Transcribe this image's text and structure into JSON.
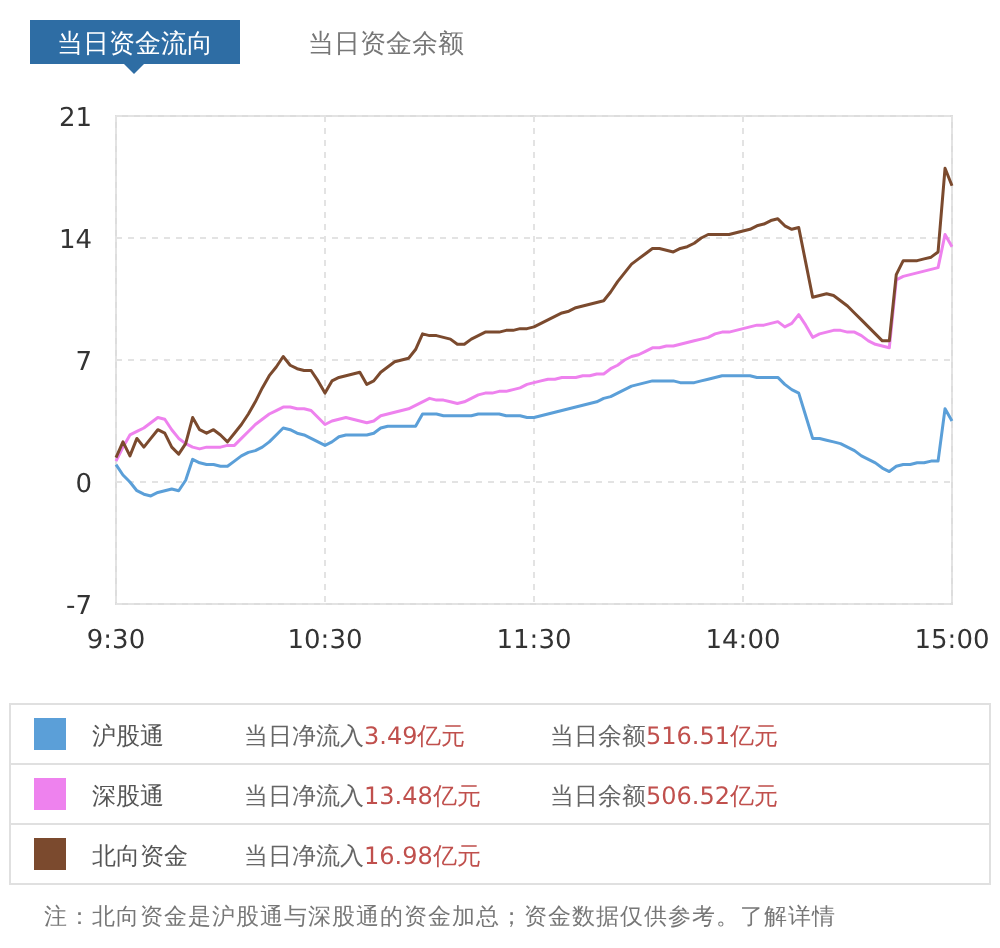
{
  "chart_data": {
    "type": "line",
    "title": "当日资金流向",
    "subtitle": "当日资金余额",
    "categories": [
      "9:30",
      null,
      null,
      null,
      null,
      null,
      null,
      null,
      null,
      null,
      null,
      null,
      null,
      null,
      null,
      null,
      null,
      null,
      null,
      null,
      null,
      null,
      null,
      null,
      null,
      null,
      null,
      null,
      null,
      null,
      "10:30",
      null,
      null,
      null,
      null,
      null,
      null,
      null,
      null,
      null,
      null,
      null,
      null,
      null,
      null,
      null,
      null,
      null,
      null,
      null,
      null,
      null,
      null,
      null,
      null,
      null,
      null,
      null,
      null,
      null,
      "11:30",
      null,
      null,
      null,
      null,
      null,
      null,
      null,
      null,
      null,
      null,
      null,
      null,
      null,
      null,
      null,
      null,
      null,
      null,
      null,
      null,
      null,
      null,
      null,
      null,
      null,
      null,
      null,
      null,
      null,
      "14:00",
      null,
      null,
      null,
      null,
      null,
      null,
      null,
      null,
      null,
      null,
      null,
      null,
      null,
      null,
      null,
      null,
      null,
      null,
      null,
      null,
      null,
      null,
      null,
      null,
      null,
      null,
      null,
      null,
      null,
      "15:00"
    ],
    "ylim": [
      -7,
      21
    ],
    "yticks": [
      -7,
      0,
      7,
      14,
      21
    ],
    "grid": true,
    "legend": "bottom",
    "marker": "none",
    "line_style": "solid",
    "series": [
      {
        "name": "沪股通",
        "color": "#5b9fd8",
        "values": [
          1.0,
          0.4,
          0.0,
          -0.5,
          -0.7,
          -0.8,
          -0.6,
          -0.5,
          -0.4,
          -0.5,
          0.1,
          1.3,
          1.1,
          1.0,
          1.0,
          0.9,
          0.9,
          1.2,
          1.5,
          1.7,
          1.8,
          2.0,
          2.3,
          2.7,
          3.1,
          3.0,
          2.8,
          2.7,
          2.5,
          2.3,
          2.1,
          2.3,
          2.6,
          2.7,
          2.7,
          2.7,
          2.7,
          2.8,
          3.1,
          3.2,
          3.2,
          3.2,
          3.2,
          3.2,
          3.9,
          3.9,
          3.9,
          3.8,
          3.8,
          3.8,
          3.8,
          3.8,
          3.9,
          3.9,
          3.9,
          3.9,
          3.8,
          3.8,
          3.8,
          3.7,
          3.7,
          3.8,
          3.9,
          4.0,
          4.1,
          4.2,
          4.3,
          4.4,
          4.5,
          4.6,
          4.8,
          4.9,
          5.1,
          5.3,
          5.5,
          5.6,
          5.7,
          5.8,
          5.8,
          5.8,
          5.8,
          5.7,
          5.7,
          5.7,
          5.8,
          5.9,
          6.0,
          6.1,
          6.1,
          6.1,
          6.1,
          6.1,
          6.0,
          6.0,
          6.0,
          6.0,
          5.6,
          5.3,
          5.1,
          3.8,
          2.5,
          2.5,
          2.4,
          2.3,
          2.2,
          2.0,
          1.8,
          1.5,
          1.3,
          1.1,
          0.8,
          0.6,
          0.9,
          1.0,
          1.0,
          1.1,
          1.1,
          1.2,
          1.2,
          4.2,
          3.5
        ]
      },
      {
        "name": "深股通",
        "color": "#ee82ee",
        "values": [
          1.2,
          2.0,
          2.7,
          2.9,
          3.1,
          3.4,
          3.7,
          3.6,
          3.0,
          2.5,
          2.2,
          2.0,
          1.9,
          2.0,
          2.0,
          2.0,
          2.1,
          2.1,
          2.5,
          2.9,
          3.3,
          3.6,
          3.9,
          4.1,
          4.3,
          4.3,
          4.2,
          4.2,
          4.1,
          3.7,
          3.3,
          3.5,
          3.6,
          3.7,
          3.6,
          3.5,
          3.4,
          3.5,
          3.8,
          3.9,
          4.0,
          4.1,
          4.2,
          4.4,
          4.6,
          4.8,
          4.7,
          4.7,
          4.6,
          4.5,
          4.6,
          4.8,
          5.0,
          5.1,
          5.1,
          5.2,
          5.2,
          5.3,
          5.4,
          5.6,
          5.7,
          5.8,
          5.9,
          5.9,
          6.0,
          6.0,
          6.0,
          6.1,
          6.1,
          6.2,
          6.2,
          6.5,
          6.7,
          7.0,
          7.2,
          7.3,
          7.5,
          7.7,
          7.7,
          7.8,
          7.8,
          7.9,
          8.0,
          8.1,
          8.2,
          8.3,
          8.5,
          8.6,
          8.6,
          8.7,
          8.8,
          8.9,
          9.0,
          9.0,
          9.1,
          9.2,
          8.9,
          9.1,
          9.6,
          9.0,
          8.3,
          8.5,
          8.6,
          8.7,
          8.7,
          8.6,
          8.6,
          8.4,
          8.1,
          7.9,
          7.8,
          7.7,
          11.6,
          11.8,
          11.9,
          12.0,
          12.1,
          12.2,
          12.3,
          14.2,
          13.5
        ]
      },
      {
        "name": "北向资金",
        "color": "#7b4a2e",
        "values": [
          1.4,
          2.3,
          1.5,
          2.5,
          2.0,
          2.5,
          3.0,
          2.8,
          2.0,
          1.6,
          2.2,
          3.7,
          3.0,
          2.8,
          3.0,
          2.7,
          2.3,
          2.8,
          3.3,
          3.9,
          4.6,
          5.4,
          6.1,
          6.6,
          7.2,
          6.7,
          6.5,
          6.4,
          6.4,
          5.8,
          5.1,
          5.8,
          6.0,
          6.1,
          6.2,
          6.3,
          5.6,
          5.8,
          6.3,
          6.6,
          6.9,
          7.0,
          7.1,
          7.6,
          8.5,
          8.4,
          8.4,
          8.3,
          8.2,
          7.9,
          7.9,
          8.2,
          8.4,
          8.6,
          8.6,
          8.6,
          8.7,
          8.7,
          8.8,
          8.8,
          8.9,
          9.1,
          9.3,
          9.5,
          9.7,
          9.8,
          10.0,
          10.1,
          10.2,
          10.3,
          10.4,
          10.9,
          11.5,
          12.0,
          12.5,
          12.8,
          13.1,
          13.4,
          13.4,
          13.3,
          13.2,
          13.4,
          13.5,
          13.7,
          14.0,
          14.2,
          14.2,
          14.2,
          14.2,
          14.3,
          14.4,
          14.5,
          14.7,
          14.8,
          15.0,
          15.1,
          14.7,
          14.5,
          14.6,
          12.6,
          10.6,
          10.7,
          10.8,
          10.7,
          10.4,
          10.1,
          9.7,
          9.3,
          8.9,
          8.5,
          8.1,
          8.1,
          11.9,
          12.7,
          12.7,
          12.7,
          12.8,
          12.9,
          13.2,
          18.0,
          17.0
        ]
      }
    ],
    "annotations": [
      "当日净流入3.49亿元",
      "当日余额516.51亿元",
      "当日净流入13.48亿元",
      "当日余额506.52亿元",
      "当日净流入16.98亿元",
      "注：北向资金是沪股通与深股通的资金加总；资金数据仅供参考。了解详情"
    ]
  }
}
